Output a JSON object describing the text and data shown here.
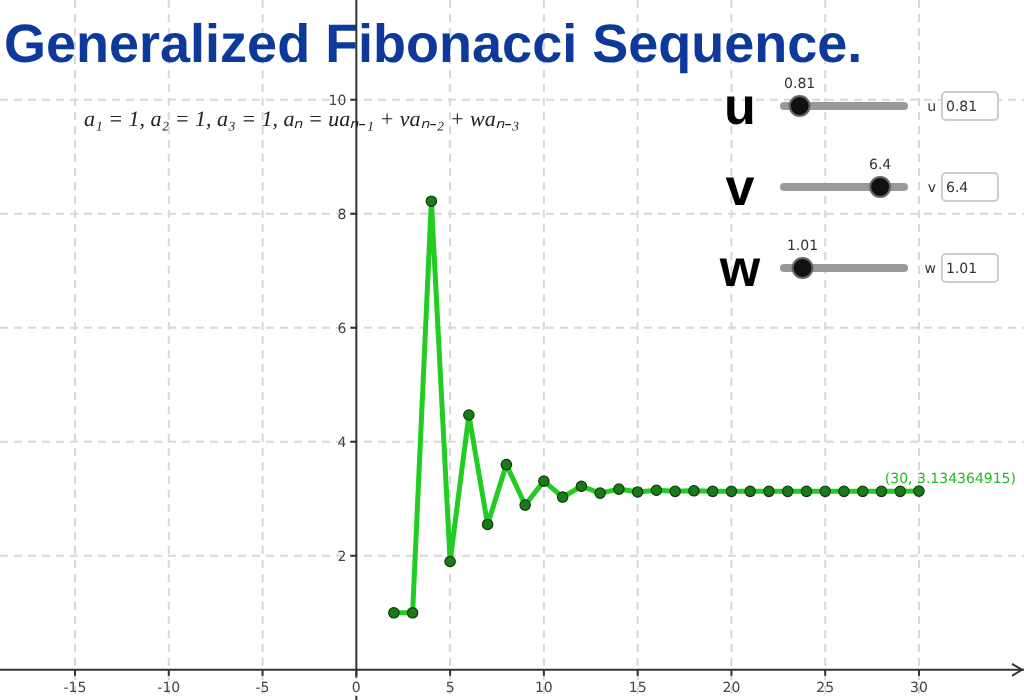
{
  "chart_data": {
    "type": "line",
    "title": "Generalized Fibonacci Sequence.",
    "x": [
      2,
      3,
      4,
      5,
      6,
      7,
      8,
      9,
      10,
      11,
      12,
      13,
      14,
      15,
      16,
      17,
      18,
      19,
      20,
      21,
      22,
      23,
      24,
      25,
      26,
      27,
      28,
      29,
      30
    ],
    "series": [
      {
        "color": "#22cc22",
        "values": [
          1,
          1,
          8.22,
          1.9,
          4.47,
          2.55,
          3.6,
          2.89,
          3.31,
          3.03,
          3.22,
          3.1,
          3.17,
          3.12,
          3.15,
          3.13,
          3.14,
          3.13,
          3.13,
          3.13,
          3.13,
          3.13,
          3.13,
          3.13,
          3.13,
          3.13,
          3.13,
          3.13,
          3.134364915
        ]
      }
    ],
    "xlim": [
      -19,
      35.6
    ],
    "ylim": [
      -0.53,
      11.75
    ],
    "xticks": [
      -15,
      -10,
      -5,
      0,
      5,
      10,
      15,
      20,
      25,
      30
    ],
    "yticks": [
      2,
      4,
      6,
      8,
      10
    ],
    "grid": true,
    "marker": "circle",
    "line_style": "solid",
    "annotations": [
      "a₁ = 1, a₂ = 1, a₃ = 1, aₙ = uaₙ₋₁ + vaₙ₋₂ + waₙ₋₃",
      "u",
      "0.81",
      "u",
      "0.81",
      "v",
      "6.4",
      "v",
      "6.4",
      "w",
      "1.01",
      "w",
      "1.01",
      {
        "text": "(30, 3.134364915)",
        "x": 30,
        "y": 3.134364915
      }
    ]
  }
}
